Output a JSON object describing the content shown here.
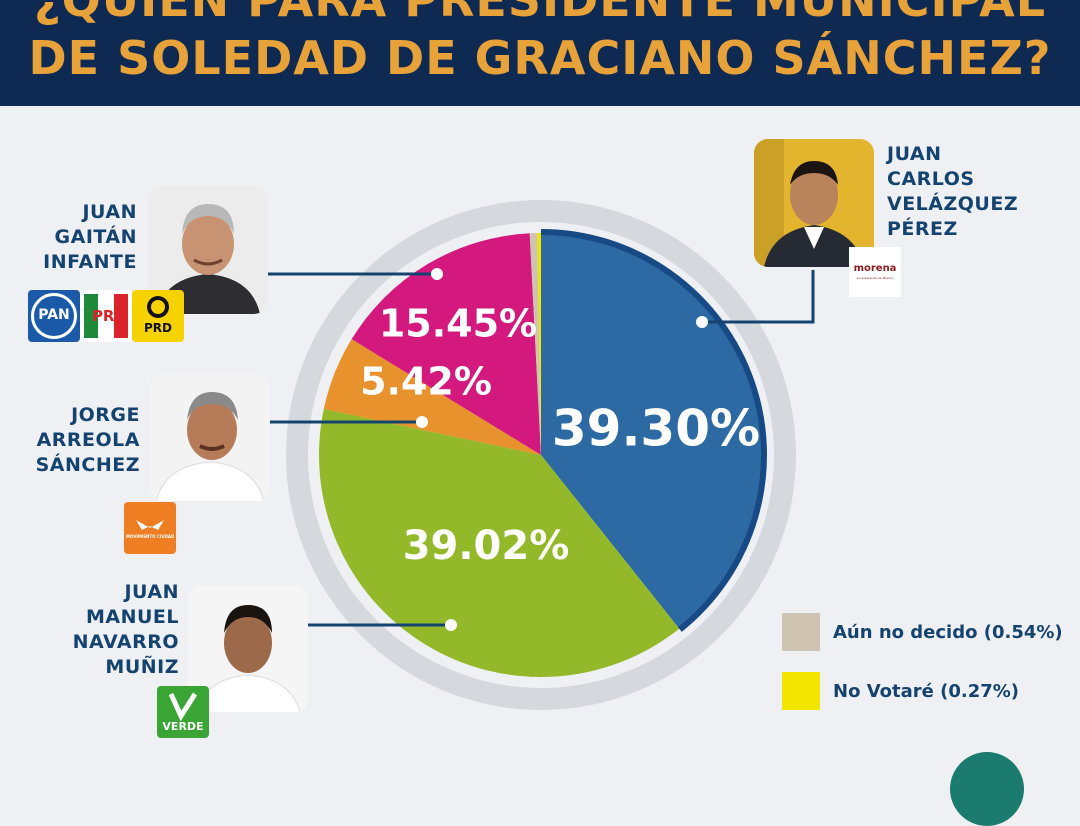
{
  "header": {
    "line1": "¿QUIÉN PARA PRESIDENTE MUNICIPAL",
    "line2": "DE SOLEDAD DE GRACIANO SÁNCHEZ?"
  },
  "candidates": {
    "velazquez": {
      "name_lines": [
        "JUAN",
        "CARLOS",
        "VELÁZQUEZ",
        "PÉREZ"
      ],
      "party": "morena",
      "party_tagline": "La esperanza de México"
    },
    "gaitan": {
      "name_lines": [
        "JUAN",
        "GAITÁN",
        "INFANTE"
      ],
      "parties": [
        "PAN",
        "PRI",
        "PRD"
      ]
    },
    "arreola": {
      "name_lines": [
        "JORGE",
        "ARREOLA",
        "SÁNCHEZ"
      ],
      "party": "MOVIMIENTO CIUDADANO"
    },
    "navarro": {
      "name_lines": [
        "JUAN",
        "MANUEL",
        "NAVARRO",
        "MUÑIZ"
      ],
      "party": "VERDE"
    }
  },
  "legend": [
    {
      "label": "Aún no decido (0.54%)",
      "color": "#cfc4b0"
    },
    {
      "label": "No Votaré (0.27%)",
      "color": "#f2e600"
    }
  ],
  "chart_data": {
    "type": "pie",
    "slices": [
      {
        "label": "39.30%",
        "value": 39.3,
        "color": "#2d6aa3"
      },
      {
        "label": "39.02%",
        "value": 39.02,
        "color": "#93b92a"
      },
      {
        "label": "5.42%",
        "value": 5.42,
        "color": "#e8922e"
      },
      {
        "label": "15.45%",
        "value": 15.45,
        "color": "#d3197d"
      },
      {
        "label": "",
        "value": 0.54,
        "color": "#cfc4b0"
      },
      {
        "label": "",
        "value": 0.27,
        "color": "#f2e600"
      }
    ]
  }
}
